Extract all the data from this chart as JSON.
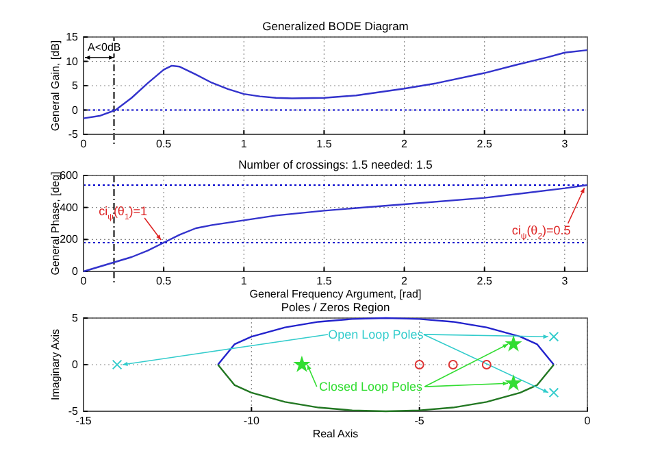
{
  "chart_data": [
    {
      "type": "line",
      "title": "Generalized BODE Diagram",
      "ylabel": "General Gain, [dB]",
      "xlim": [
        0,
        3.1416
      ],
      "xticks": [
        0,
        0.5,
        1,
        1.5,
        2,
        2.5,
        3
      ],
      "ylim": [
        -5,
        15
      ],
      "yticks": [
        -5,
        0,
        5,
        10,
        15
      ],
      "grid": true,
      "x": [
        0,
        0.1,
        0.2,
        0.3,
        0.4,
        0.5,
        0.55,
        0.6,
        0.7,
        0.8,
        0.9,
        1.0,
        1.1,
        1.2,
        1.3,
        1.5,
        1.7,
        2.0,
        2.2,
        2.5,
        2.7,
        2.9,
        3.0,
        3.14
      ],
      "series": [
        {
          "color": "#3333cc",
          "values": [
            -1.7,
            -1.2,
            0,
            2.5,
            5.5,
            8.3,
            9.1,
            8.9,
            7.3,
            5.6,
            4.3,
            3.3,
            2.8,
            2.5,
            2.4,
            2.5,
            3.0,
            4.4,
            5.5,
            7.6,
            9.3,
            10.9,
            11.8,
            12.3
          ]
        }
      ],
      "ref_lines": [
        {
          "axis": "y",
          "value": 0,
          "color": "#0000cc",
          "line_style": "dotted"
        },
        {
          "axis": "x",
          "value": 0.19,
          "color": "#000000",
          "line_style": "dashed"
        }
      ],
      "annotations": [
        "A<0dB"
      ]
    },
    {
      "type": "line",
      "title": "Number of crossings: 1.5  needed: 1.5",
      "xlabel": "General  Frequency Argument, [rad]",
      "ylabel": "General Phase, [deg]",
      "xlim": [
        0,
        3.1416
      ],
      "xticks": [
        0,
        0.5,
        1,
        1.5,
        2,
        2.5,
        3
      ],
      "ylim": [
        0,
        600
      ],
      "yticks": [
        0,
        200,
        400,
        600
      ],
      "grid": true,
      "x": [
        0,
        0.2,
        0.3,
        0.4,
        0.5,
        0.6,
        0.7,
        0.8,
        1.0,
        1.2,
        1.5,
        2.0,
        2.5,
        3.0,
        3.14
      ],
      "series": [
        {
          "color": "#3333cc",
          "values": [
            0,
            60,
            90,
            130,
            180,
            230,
            270,
            290,
            320,
            350,
            380,
            420,
            460,
            520,
            540
          ]
        }
      ],
      "ref_lines": [
        {
          "axis": "y",
          "value": 180,
          "color": "#0000cc",
          "line_style": "dotted"
        },
        {
          "axis": "y",
          "value": 540,
          "color": "#0000cc",
          "line_style": "dotted"
        },
        {
          "axis": "x",
          "value": 0.19,
          "color": "#000000",
          "line_style": "dashed"
        }
      ],
      "annotations": [
        {
          "text": "ci$_{ψ}$(θ$_{1}$)=1",
          "x": 0.5,
          "y": 180
        },
        {
          "text": "ci$_{ψ}$(θ$_{2}$)=0.5",
          "x": 3.14,
          "y": 540
        }
      ]
    },
    {
      "type": "scatter",
      "title": "Poles / Zeros Region",
      "xlabel": "Real Axis",
      "ylabel": "Imaginary Axis",
      "xlim": [
        -15,
        0
      ],
      "xticks": [
        -15,
        -10,
        -5,
        0
      ],
      "ylim": [
        -5,
        5
      ],
      "yticks": [
        -5,
        0,
        5
      ],
      "grid": true,
      "series": [
        {
          "type": "line",
          "marker": "none",
          "color": "#2222cc",
          "x": [
            -11,
            -10.5,
            -10,
            -9,
            -8,
            -7,
            -6,
            -5,
            -4,
            -3,
            -2,
            -1.5,
            -1
          ],
          "values": [
            0,
            2.2,
            3,
            4,
            4.6,
            4.9,
            5,
            4.9,
            4.6,
            4,
            3,
            2.2,
            0
          ]
        },
        {
          "type": "line",
          "marker": "none",
          "color": "#227722",
          "x": [
            -11,
            -10.5,
            -10,
            -9,
            -8,
            -7,
            -6,
            -5,
            -4,
            -3,
            -2,
            -1.5,
            -1
          ],
          "values": [
            0,
            -2.2,
            -3,
            -4,
            -4.6,
            -4.9,
            -5,
            -4.9,
            -4.6,
            -4,
            -3,
            -2.2,
            0
          ]
        },
        {
          "marker": "cross",
          "name": "Open Loop Poles",
          "color": "#33cccc",
          "x": [
            -14,
            -1,
            -1
          ],
          "values": [
            0,
            3,
            -3
          ]
        },
        {
          "marker": "star",
          "name": "Closed Loop Poles",
          "color": "#33dd33",
          "x": [
            -8.5,
            -2.2,
            -2.2
          ],
          "values": [
            0,
            2.2,
            -2
          ]
        },
        {
          "marker": "circle",
          "color": "#dd3333",
          "x": [
            -5,
            -4,
            -3
          ],
          "values": [
            0,
            0,
            0
          ]
        }
      ]
    }
  ]
}
